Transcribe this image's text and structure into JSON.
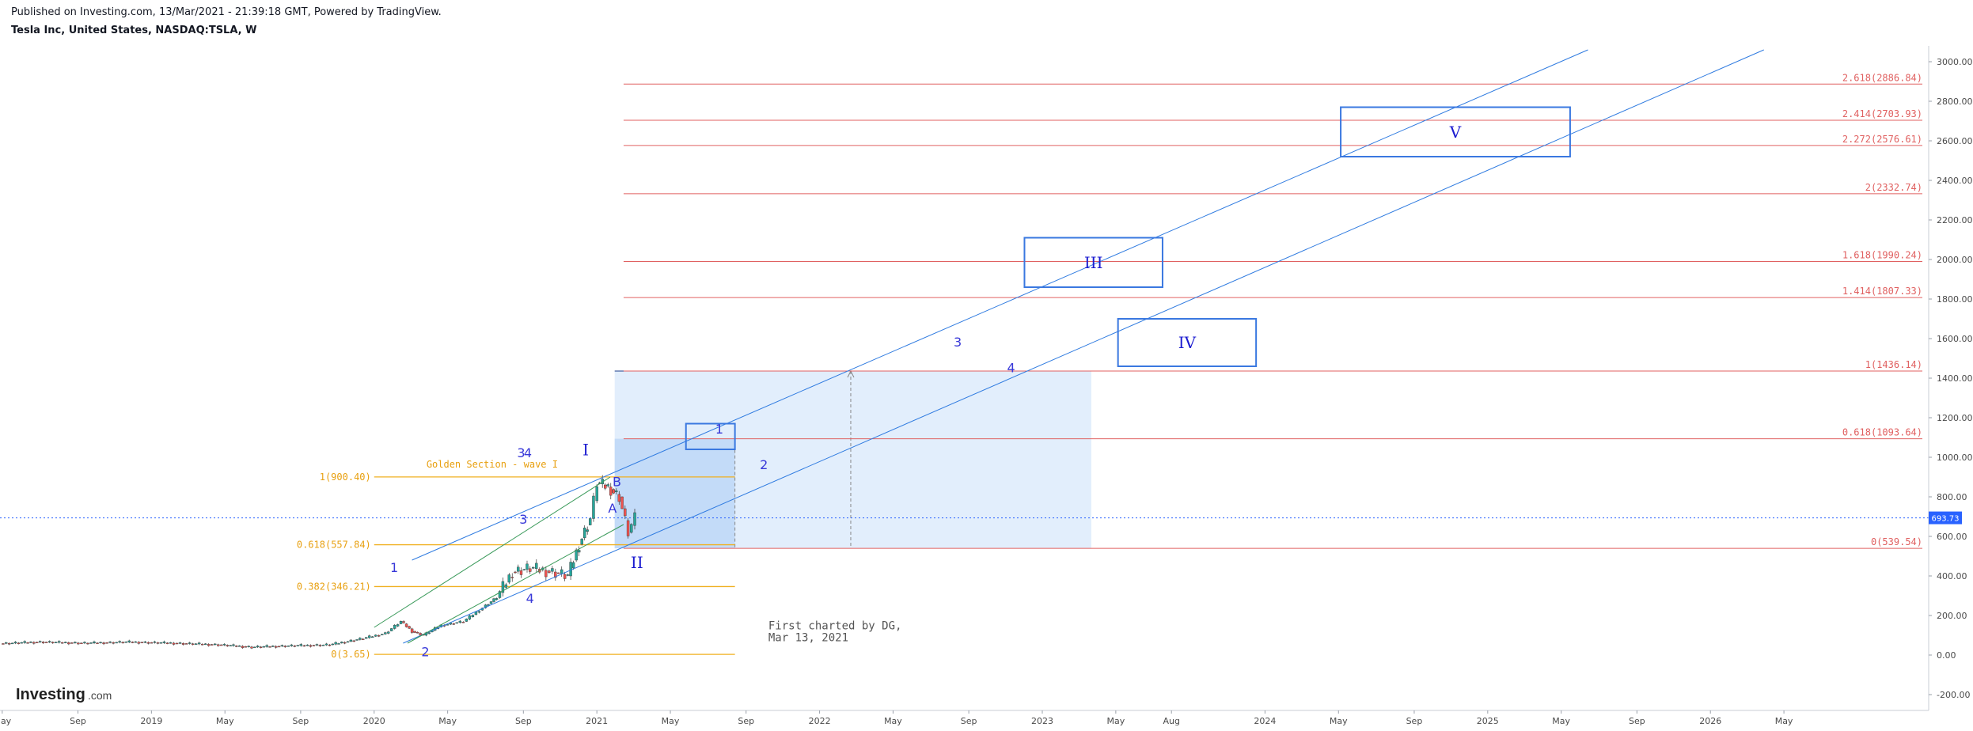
{
  "header": {
    "published": "Published on Investing.com, 13/Mar/2021 - 21:39:18 GMT, Powered by TradingView.",
    "symbol": "Tesla Inc, United States, NASDAQ:TSLA, W"
  },
  "logo": {
    "main": "Investing",
    "sub": ".com"
  },
  "colors": {
    "fib_red": "#e06060",
    "fib_gold": "#f0b020",
    "channel_blue": "#2f7be0",
    "box_blue": "#3a78e0",
    "up_candle": "#26a69a",
    "down_candle": "#ef5350",
    "wave_label": "#1b1bd0",
    "current_price_tag": "#2962ff"
  },
  "chart_data": {
    "type": "candlestick",
    "x_unit": "years (decimal)",
    "y_unit": "USD",
    "ylim": [
      -280,
      3080
    ],
    "xlim": [
      2018.32,
      2026.98
    ],
    "y_ticks": [
      "3000.00",
      "2800.00",
      "2600.00",
      "2400.00",
      "2200.00",
      "2000.00",
      "1800.00",
      "1600.00",
      "1400.00",
      "1200.00",
      "1000.00",
      "800.00",
      "600.00",
      "400.00",
      "200.00",
      "0.00",
      "-200.00"
    ],
    "x_ticks": [
      {
        "label": "May",
        "x": 2018.33
      },
      {
        "label": "Sep",
        "x": 2018.67
      },
      {
        "label": "2019",
        "x": 2019.0
      },
      {
        "label": "May",
        "x": 2019.33
      },
      {
        "label": "Sep",
        "x": 2019.67
      },
      {
        "label": "2020",
        "x": 2020.0
      },
      {
        "label": "May",
        "x": 2020.33
      },
      {
        "label": "Sep",
        "x": 2020.67
      },
      {
        "label": "2021",
        "x": 2021.0
      },
      {
        "label": "May",
        "x": 2021.33
      },
      {
        "label": "Sep",
        "x": 2021.67
      },
      {
        "label": "2022",
        "x": 2022.0
      },
      {
        "label": "May",
        "x": 2022.33
      },
      {
        "label": "Sep",
        "x": 2022.67
      },
      {
        "label": "2023",
        "x": 2023.0
      },
      {
        "label": "May",
        "x": 2023.33
      },
      {
        "label": "Aug",
        "x": 2023.58
      },
      {
        "label": "2024",
        "x": 2024.0
      },
      {
        "label": "May",
        "x": 2024.33
      },
      {
        "label": "Sep",
        "x": 2024.67
      },
      {
        "label": "2025",
        "x": 2025.0
      },
      {
        "label": "May",
        "x": 2025.33
      },
      {
        "label": "Sep",
        "x": 2025.67
      },
      {
        "label": "2026",
        "x": 2026.0
      },
      {
        "label": "May",
        "x": 2026.33
      }
    ],
    "current_price": {
      "label": "693.73",
      "value": 693.73
    },
    "price_path": [
      [
        2018.32,
        58
      ],
      [
        2018.5,
        66
      ],
      [
        2018.7,
        60
      ],
      [
        2018.9,
        66
      ],
      [
        2019.1,
        60
      ],
      [
        2019.3,
        52
      ],
      [
        2019.45,
        40
      ],
      [
        2019.6,
        46
      ],
      [
        2019.8,
        52
      ],
      [
        2019.95,
        84
      ],
      [
        2020.05,
        110
      ],
      [
        2020.12,
        170
      ],
      [
        2020.17,
        120
      ],
      [
        2020.22,
        100
      ],
      [
        2020.3,
        150
      ],
      [
        2020.4,
        170
      ],
      [
        2020.5,
        250
      ],
      [
        2020.55,
        290
      ],
      [
        2020.62,
        420
      ],
      [
        2020.7,
        440
      ],
      [
        2020.8,
        420
      ],
      [
        2020.87,
        400
      ],
      [
        2020.92,
        560
      ],
      [
        2020.97,
        690
      ],
      [
        2021.0,
        870
      ],
      [
        2021.05,
        850
      ],
      [
        2021.1,
        800
      ],
      [
        2021.14,
        620
      ],
      [
        2021.17,
        690
      ]
    ],
    "red_fib_levels": [
      {
        "label": "2.618(2886.84)",
        "value": 2886.84
      },
      {
        "label": "2.414(2703.93)",
        "value": 2703.93
      },
      {
        "label": "2.272(2576.61)",
        "value": 2576.61
      },
      {
        "label": "2(2332.74)",
        "value": 2332.74
      },
      {
        "label": "1.618(1990.24)",
        "value": 1990.24
      },
      {
        "label": "1.414(1807.33)",
        "value": 1807.33
      },
      {
        "label": "1(1436.14)",
        "value": 1436.14
      },
      {
        "label": "0.618(1093.64)",
        "value": 1093.64
      },
      {
        "label": "0(539.54)",
        "value": 539.54
      }
    ],
    "gold_fib_levels": [
      {
        "label": "1(900.40)",
        "value": 900.4
      },
      {
        "label": "0.618(557.84)",
        "value": 557.84
      },
      {
        "label": "0.382(346.21)",
        "value": 346.21
      },
      {
        "label": "0(3.65)",
        "value": 3.65
      }
    ],
    "gold_fib_title": "Golden Section - wave I",
    "wave_labels": [
      {
        "text": "1",
        "x": 2020.09,
        "y": 420
      },
      {
        "text": "2",
        "x": 2020.23,
        "y": -5
      },
      {
        "text": "3",
        "x": 2020.66,
        "y": 1000
      },
      {
        "text": "4",
        "x": 2020.69,
        "y": 1000
      },
      {
        "text": "3",
        "x": 2020.67,
        "y": 665
      },
      {
        "text": "4",
        "x": 2020.7,
        "y": 265
      },
      {
        "text": "I",
        "x": 2020.95,
        "y": 1010
      },
      {
        "text": "II",
        "x": 2021.18,
        "y": 440
      },
      {
        "text": "B",
        "x": 2021.09,
        "y": 855
      },
      {
        "text": "A",
        "x": 2021.07,
        "y": 720
      },
      {
        "text": "1",
        "x": 2021.55,
        "y": 1120
      },
      {
        "text": "2",
        "x": 2021.75,
        "y": 940
      },
      {
        "text": "3",
        "x": 2022.62,
        "y": 1560
      },
      {
        "text": "4",
        "x": 2022.86,
        "y": 1430
      }
    ],
    "wave_boxes": [
      {
        "text": "III",
        "x0": 2022.92,
        "x1": 2023.54,
        "y0": 1860,
        "y1": 2110
      },
      {
        "text": "IV",
        "x0": 2023.34,
        "x1": 2023.96,
        "y0": 1460,
        "y1": 1700
      },
      {
        "text": "V",
        "x0": 2024.34,
        "x1": 2025.37,
        "y0": 2520,
        "y1": 2770
      }
    ],
    "annotation": [
      "First charted by DG,",
      "Mar 13, 2021"
    ]
  }
}
